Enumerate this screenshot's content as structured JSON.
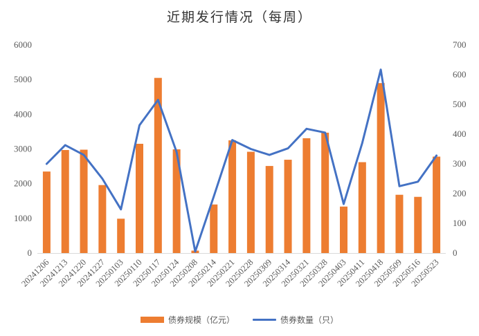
{
  "chart_data": {
    "type": "bar+line",
    "title": "近期发行情况（每周）",
    "categories": [
      "20241206",
      "20241213",
      "20241220",
      "20241227",
      "20250103",
      "20250110",
      "20250117",
      "20250124",
      "20250208",
      "20250214",
      "20250221",
      "20250228",
      "20250309",
      "20250314",
      "20250321",
      "20250328",
      "20250403",
      "20250411",
      "20250418",
      "20250509",
      "20250516",
      "20250523"
    ],
    "series": [
      {
        "name": "债券规模（亿元）",
        "type": "bar",
        "axis": "left",
        "color": "#ED7D31",
        "values": [
          2350,
          2970,
          2980,
          1960,
          990,
          3150,
          5050,
          2990,
          70,
          1400,
          3250,
          2920,
          2510,
          2690,
          3310,
          3470,
          1340,
          2620,
          4900,
          1680,
          1620,
          2780
        ]
      },
      {
        "name": "债券数量（只）",
        "type": "line",
        "axis": "right",
        "color": "#4472C4",
        "values": [
          300,
          363,
          330,
          250,
          147,
          430,
          515,
          340,
          5,
          190,
          380,
          350,
          330,
          352,
          418,
          405,
          165,
          370,
          617,
          225,
          240,
          328
        ]
      }
    ],
    "y_left": {
      "min": 0,
      "max": 6000,
      "ticks": [
        0,
        1000,
        2000,
        3000,
        4000,
        5000,
        6000
      ]
    },
    "y_right": {
      "min": 0,
      "max": 700,
      "ticks": [
        0,
        100,
        200,
        300,
        400,
        500,
        600,
        700
      ]
    },
    "grid": false,
    "legend_position": "bottom"
  }
}
